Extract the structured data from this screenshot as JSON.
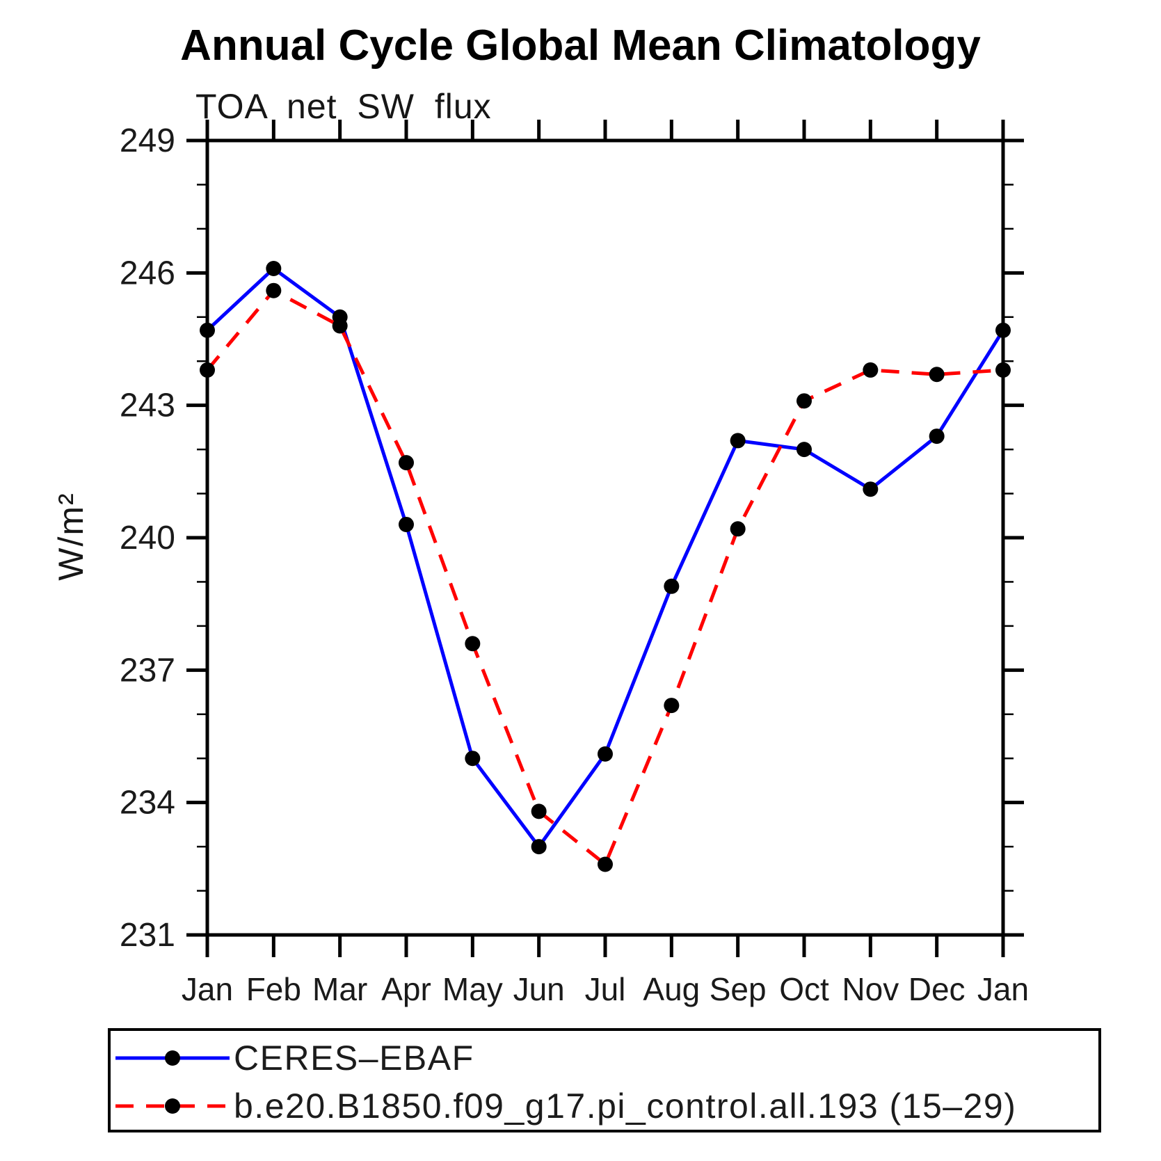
{
  "chart": {
    "title": "Annual Cycle Global Mean Climatology",
    "subtitle": "TOA net SW flux",
    "ylabel": "W/m²"
  },
  "legend": {
    "items": [
      {
        "label": "CERES–EBAF",
        "color": "#0000ff",
        "line_style": "solid",
        "marker": "black-dot"
      },
      {
        "label": "b.e20.B1850.f09_g17.pi_control.all.193 (15–29)",
        "color": "#ff0000",
        "line_style": "dashed",
        "marker": "black-dot"
      }
    ]
  },
  "chart_data": {
    "type": "line",
    "title": "Annual Cycle Global Mean Climatology",
    "subtitle": "TOA net SW flux",
    "xlabel": "",
    "ylabel": "W/m²",
    "ylim": [
      231,
      249
    ],
    "y_major_ticks": [
      231,
      234,
      237,
      240,
      243,
      246,
      249
    ],
    "y_minor_step": 1,
    "grid": "off",
    "legend_position": "bottom",
    "x_categories": [
      "Jan",
      "Feb",
      "Mar",
      "Apr",
      "May",
      "Jun",
      "Jul",
      "Aug",
      "Sep",
      "Oct",
      "Nov",
      "Dec",
      "Jan"
    ],
    "series": [
      {
        "name": "CERES–EBAF",
        "color": "#0000ff",
        "style": "solid",
        "marker_color": "#000000",
        "values": [
          244.7,
          246.1,
          245.0,
          240.3,
          235.0,
          233.0,
          235.1,
          238.9,
          242.2,
          242.0,
          241.1,
          242.3,
          244.7
        ]
      },
      {
        "name": "b.e20.B1850.f09_g17.pi_control.all.193 (15–29)",
        "color": "#ff0000",
        "style": "dashed",
        "marker_color": "#000000",
        "values": [
          243.8,
          245.6,
          244.8,
          241.7,
          237.6,
          233.8,
          232.6,
          236.2,
          240.2,
          243.1,
          243.8,
          243.7,
          243.8
        ]
      }
    ]
  }
}
